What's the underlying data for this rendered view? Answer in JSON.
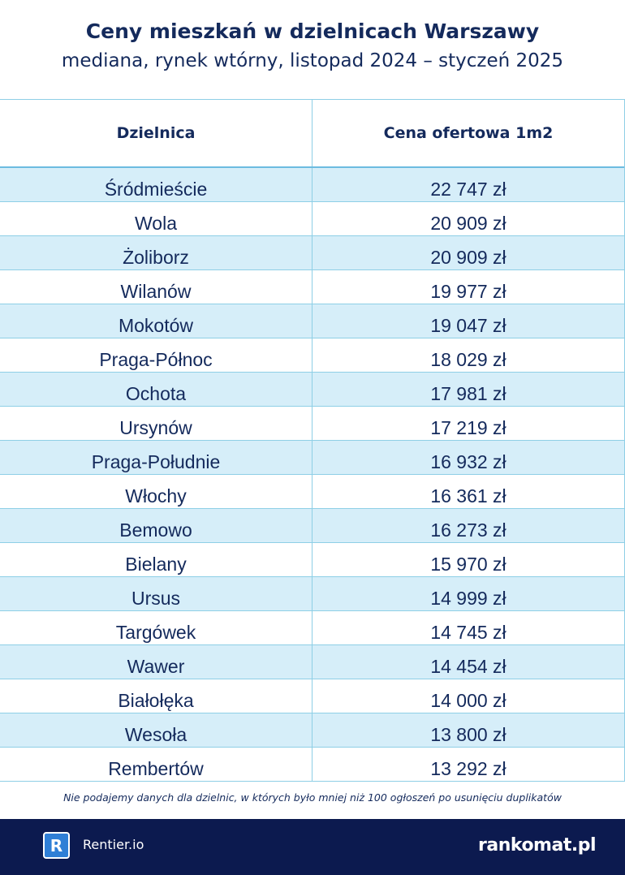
{
  "header": {
    "title": "Ceny mieszkań w dzielnicach Warszawy",
    "subtitle": "mediana, rynek wtórny, listopad 2024 – styczeń 2025"
  },
  "table": {
    "columns": [
      "Dzielnica",
      "Cena ofertowa 1m2"
    ],
    "rows": [
      {
        "district": "Śródmieście",
        "price": "22 747 zł"
      },
      {
        "district": "Wola",
        "price": "20 909 zł"
      },
      {
        "district": "Żoliborz",
        "price": "20 909 zł"
      },
      {
        "district": "Wilanów",
        "price": "19 977 zł"
      },
      {
        "district": "Mokotów",
        "price": "19 047 zł"
      },
      {
        "district": "Praga-Północ",
        "price": "18 029 zł"
      },
      {
        "district": "Ochota",
        "price": "17 981 zł"
      },
      {
        "district": "Ursynów",
        "price": "17 219 zł"
      },
      {
        "district": "Praga-Południe",
        "price": "16 932 zł"
      },
      {
        "district": "Włochy",
        "price": "16 361 zł"
      },
      {
        "district": "Bemowo",
        "price": "16 273 zł"
      },
      {
        "district": "Bielany",
        "price": "15 970 zł"
      },
      {
        "district": "Ursus",
        "price": "14 999 zł"
      },
      {
        "district": "Targówek",
        "price": "14 745 zł"
      },
      {
        "district": "Wawer",
        "price": "14 454 zł"
      },
      {
        "district": "Białołęka",
        "price": "14 000 zł"
      },
      {
        "district": "Wesoła",
        "price": "13 800 zł"
      },
      {
        "district": "Rembertów",
        "price": "13 292 zł"
      }
    ]
  },
  "note": "Nie podajemy danych dla dzielnic, w których było mniej niż 100 ogłoszeń po usunięciu duplikatów",
  "footer": {
    "left_logo_letter": "R",
    "left_brand": "Rentier.io",
    "right_brand": "rankomat.pl"
  },
  "colors": {
    "text": "#142a5c",
    "row_shade": "#d6eef9",
    "border": "#8ecfe6",
    "footer_bg": "#0c1a4f"
  }
}
